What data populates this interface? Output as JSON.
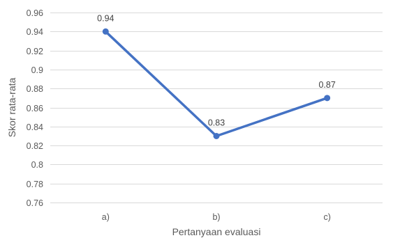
{
  "chart_data": {
    "type": "line",
    "categories": [
      "a)",
      "b)",
      "c)"
    ],
    "series": [
      {
        "values": [
          0.94,
          0.83,
          0.87
        ],
        "data_labels": [
          "0.94",
          "0.83",
          "0.87"
        ],
        "color": "#4472C4"
      }
    ],
    "xlabel": "Pertanyaan evaluasi",
    "ylabel": "Skor rata-rata",
    "ylim": [
      0.76,
      0.96
    ],
    "y_ticks": [
      0.76,
      0.78,
      0.8,
      0.82,
      0.84,
      0.86,
      0.88,
      0.9,
      0.92,
      0.94,
      0.96
    ],
    "y_tick_labels": [
      "0.76",
      "0.78",
      "0.8",
      "0.82",
      "0.84",
      "0.86",
      "0.88",
      "0.9",
      "0.92",
      "0.94",
      "0.96"
    ],
    "grid": true,
    "legend": "none",
    "colors": {
      "series": "#4472C4",
      "grid": "#D9D9D9",
      "text": "#595959"
    }
  }
}
